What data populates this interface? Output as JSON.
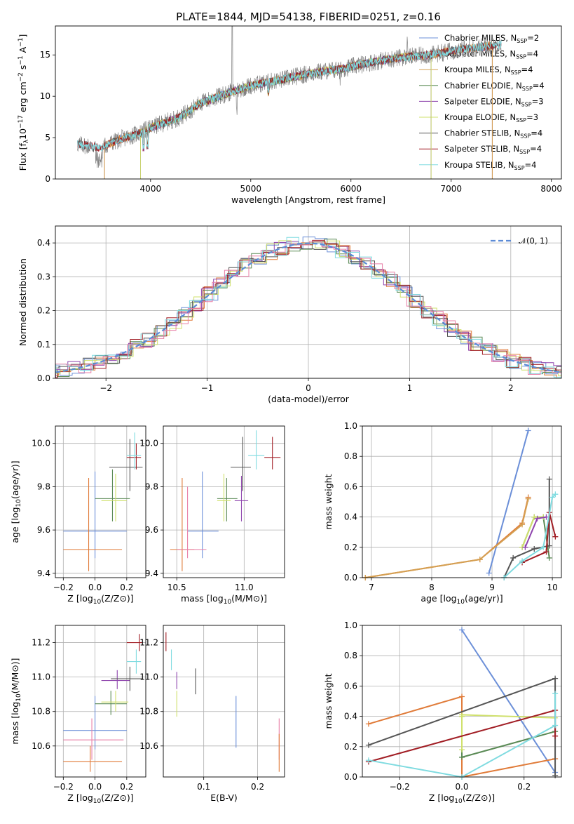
{
  "colors": {
    "cMiles": "#6b8fd8",
    "sMiles": "#e07b39",
    "kMiles": "#d4a052",
    "cElodie": "#5a8a55",
    "sElodie": "#8e44ad",
    "kElodie": "#cfe06b",
    "cStelib": "#555555",
    "sStelib": "#a11d24",
    "kStelib": "#7fdbe0",
    "extraPink": "#e87ea6",
    "gauss": "#5b8bd6"
  },
  "chart_data": [
    {
      "type": "line",
      "title": "PLATE=1844, MJD=54138, FIBERID=0251, z=0.16",
      "xlabel": "wavelength [Angstrom, rest frame]",
      "ylabel": "Flux [f_λ10^-17 erg cm^-2 s^-1 A^-1]",
      "xlim": [
        3050,
        8100
      ],
      "ylim": [
        0,
        18.5
      ],
      "xticks": [
        "4000",
        "5000",
        "6000",
        "7000",
        "8000"
      ],
      "yticks": [
        "0",
        "5",
        "10",
        "15"
      ],
      "grid": false,
      "legend": "upper-right",
      "continuum": [
        [
          3270,
          4.2
        ],
        [
          3500,
          3.8
        ],
        [
          3700,
          4.8
        ],
        [
          3900,
          5.6
        ],
        [
          4000,
          6.2
        ],
        [
          4300,
          7.5
        ],
        [
          4500,
          9.2
        ],
        [
          4800,
          10.5
        ],
        [
          5000,
          11.3
        ],
        [
          5300,
          12.0
        ],
        [
          5600,
          12.8
        ],
        [
          5900,
          13.3
        ],
        [
          6200,
          14.1
        ],
        [
          6500,
          14.7
        ],
        [
          6800,
          15.0
        ],
        [
          7000,
          15.5
        ],
        [
          7200,
          15.8
        ],
        [
          7400,
          16.1
        ],
        [
          7500,
          16.3
        ]
      ],
      "legend_entries": [
        {
          "name": "Chabrier MILES, N",
          "sub": "SSP",
          "tail": "=2"
        },
        {
          "name": "Salpeter MILES, N",
          "sub": "SSP",
          "tail": "=4"
        },
        {
          "name": "Kroupa MILES, N",
          "sub": "SSP",
          "tail": "=4"
        },
        {
          "name": "Chabrier ELODIE, N",
          "sub": "SSP",
          "tail": "=4"
        },
        {
          "name": "Salpeter ELODIE, N",
          "sub": "SSP",
          "tail": "=3"
        },
        {
          "name": "Kroupa ELODIE, N",
          "sub": "SSP",
          "tail": "=3"
        },
        {
          "name": "Chabrier STELIB, N",
          "sub": "SSP",
          "tail": "=4"
        },
        {
          "name": "Salpeter STELIB, N",
          "sub": "SSP",
          "tail": "=4"
        },
        {
          "name": "Kroupa STELIB, N",
          "sub": "SSP",
          "tail": "=4"
        }
      ]
    },
    {
      "type": "histogram",
      "xlabel": "(data-model)/error",
      "ylabel": "Normed distribution",
      "xlim": [
        -2.5,
        2.5
      ],
      "ylim": [
        0,
        0.45
      ],
      "xticks": [
        "−2",
        "−1",
        "0",
        "1",
        "2"
      ],
      "yticks": [
        "0.0",
        "0.1",
        "0.2",
        "0.3",
        "0.4"
      ],
      "grid": true,
      "legend": "upper-right",
      "gauss_label": "𝒩(0, 1)"
    },
    {
      "type": "scatter",
      "xlabel": "Z [log10(Z/Z⊙)]",
      "ylabel": "age  [log10(age/yr)]",
      "xlim": [
        -0.25,
        0.32
      ],
      "ylim": [
        9.38,
        10.08
      ],
      "xticks": [
        "−0.2",
        "0.0",
        "0.2"
      ],
      "yticks": [
        "9.4",
        "9.6",
        "9.8",
        "10.0"
      ],
      "points": [
        {
          "k": "cMiles",
          "x": 0.0,
          "y": 9.595,
          "xe": [
            -0.2,
            0.2
          ],
          "ye": [
            9.47,
            9.87
          ]
        },
        {
          "k": "sMiles",
          "x": -0.04,
          "y": 9.51,
          "xe": [
            -0.2,
            0.17
          ],
          "ye": [
            9.41,
            9.84
          ]
        },
        {
          "k": "cElodie",
          "x": 0.11,
          "y": 9.745,
          "xe": [
            0.0,
            0.22
          ],
          "ye": [
            9.64,
            9.88
          ]
        },
        {
          "k": "kElodie",
          "x": 0.13,
          "y": 9.735,
          "xe": [
            0.04,
            0.2
          ],
          "ye": [
            9.64,
            9.86
          ]
        },
        {
          "k": "cStelib",
          "x": 0.22,
          "y": 9.89,
          "xe": [
            0.09,
            0.3
          ],
          "ye": [
            9.78,
            10.02
          ]
        },
        {
          "k": "sStelib",
          "x": 0.26,
          "y": 9.935,
          "xe": [
            0.2,
            0.29
          ],
          "ye": [
            9.88,
            10.0
          ]
        },
        {
          "k": "kStelib",
          "x": 0.25,
          "y": 9.945,
          "xe": [
            0.2,
            0.29
          ],
          "ye": [
            9.88,
            10.05
          ]
        }
      ]
    },
    {
      "type": "scatter",
      "xlabel": "mass [log10(M/M⊙)]",
      "ylabel": "",
      "xlim": [
        10.4,
        11.3
      ],
      "ylim": [
        9.38,
        10.08
      ],
      "xticks": [
        "10.5",
        "11.0"
      ],
      "yticks": [
        "9.4",
        "9.6",
        "9.8",
        "10.0"
      ],
      "points": [
        {
          "k": "cMiles",
          "x": 10.69,
          "y": 9.595,
          "xe": [
            10.58,
            10.81
          ],
          "ye": [
            9.47,
            9.87
          ]
        },
        {
          "k": "sMiles",
          "x": 10.54,
          "y": 9.51,
          "xe": [
            10.45,
            10.63
          ],
          "ye": [
            9.41,
            9.84
          ]
        },
        {
          "k": "extraPink",
          "x": 10.58,
          "y": 9.51,
          "xe": [
            10.5,
            10.72
          ],
          "ye": [
            9.47,
            9.8
          ]
        },
        {
          "k": "cElodie",
          "x": 10.87,
          "y": 9.745,
          "xe": [
            10.8,
            10.95
          ],
          "ye": [
            9.64,
            9.84
          ]
        },
        {
          "k": "kElodie",
          "x": 10.85,
          "y": 9.735,
          "xe": [
            10.8,
            10.9
          ],
          "ye": [
            9.64,
            9.86
          ]
        },
        {
          "k": "sElodie",
          "x": 10.98,
          "y": 9.735,
          "xe": [
            10.93,
            11.03
          ],
          "ye": [
            9.64,
            9.85
          ]
        },
        {
          "k": "cStelib",
          "x": 10.99,
          "y": 9.89,
          "xe": [
            10.9,
            11.05
          ],
          "ye": [
            9.78,
            10.03
          ]
        },
        {
          "k": "kStelib",
          "x": 11.09,
          "y": 9.945,
          "xe": [
            11.03,
            11.15
          ],
          "ye": [
            9.88,
            10.06
          ]
        },
        {
          "k": "sStelib",
          "x": 11.21,
          "y": 9.935,
          "xe": [
            11.15,
            11.27
          ],
          "ye": [
            9.88,
            10.03
          ]
        }
      ]
    },
    {
      "type": "line",
      "xlabel": "age  [log10(age/yr)]",
      "ylabel": "mass weight",
      "xlim": [
        6.85,
        10.15
      ],
      "ylim": [
        0,
        1
      ],
      "xticks": [
        "7",
        "8",
        "9",
        "10"
      ],
      "yticks": [
        "0.0",
        "0.2",
        "0.4",
        "0.6",
        "0.8",
        "1.0"
      ],
      "series": [
        {
          "k": "cMiles",
          "pts": [
            [
              8.95,
              0.03
            ],
            [
              9.6,
              0.97
            ]
          ]
        },
        {
          "k": "sMiles",
          "pts": [
            [
              6.9,
              0.0
            ],
            [
              8.8,
              0.12
            ],
            [
              9.5,
              0.36
            ],
            [
              9.6,
              0.53
            ]
          ]
        },
        {
          "k": "kMiles",
          "pts": [
            [
              6.9,
              0.0
            ],
            [
              8.8,
              0.12
            ],
            [
              9.5,
              0.35
            ],
            [
              9.6,
              0.52
            ]
          ]
        },
        {
          "k": "cElodie",
          "pts": [
            [
              9.5,
              0.2
            ],
            [
              9.7,
              0.4
            ],
            [
              9.85,
              0.4
            ],
            [
              9.95,
              0.13
            ]
          ]
        },
        {
          "k": "kElodie",
          "pts": [
            [
              9.5,
              0.2
            ],
            [
              9.7,
              0.4
            ],
            [
              9.85,
              0.4
            ]
          ]
        },
        {
          "k": "sElodie",
          "pts": [
            [
              9.55,
              0.2
            ],
            [
              9.75,
              0.39
            ],
            [
              9.9,
              0.4
            ]
          ]
        },
        {
          "k": "cStelib",
          "pts": [
            [
              9.2,
              0.0
            ],
            [
              9.35,
              0.13
            ],
            [
              9.7,
              0.19
            ],
            [
              9.95,
              0.21
            ],
            [
              9.95,
              0.65
            ]
          ]
        },
        {
          "k": "sStelib",
          "pts": [
            [
              9.5,
              0.1
            ],
            [
              9.9,
              0.17
            ],
            [
              9.95,
              0.43
            ],
            [
              10.05,
              0.27
            ]
          ]
        },
        {
          "k": "kStelib",
          "pts": [
            [
              9.2,
              0.0
            ],
            [
              9.5,
              0.11
            ],
            [
              9.85,
              0.2
            ],
            [
              10.0,
              0.53
            ],
            [
              10.05,
              0.55
            ]
          ]
        }
      ]
    },
    {
      "type": "scatter",
      "xlabel": "Z [log10(Z/Z⊙)]",
      "ylabel": "mass [log10(M/M⊙)]",
      "xlim": [
        -0.25,
        0.32
      ],
      "ylim": [
        10.42,
        11.3
      ],
      "xticks": [
        "−0.2",
        "0.0",
        "0.2"
      ],
      "yticks": [
        "10.6",
        "10.8",
        "11.0",
        "11.2"
      ],
      "points": [
        {
          "k": "cMiles",
          "x": 0.0,
          "y": 10.69,
          "xe": [
            -0.2,
            0.2
          ],
          "ye": [
            10.58,
            10.89
          ]
        },
        {
          "k": "extraPink",
          "x": -0.02,
          "y": 10.635,
          "xe": [
            -0.2,
            0.18
          ],
          "ye": [
            10.52,
            10.76
          ]
        },
        {
          "k": "sMiles",
          "x": -0.03,
          "y": 10.51,
          "xe": [
            -0.2,
            0.17
          ],
          "ye": [
            10.45,
            10.6
          ]
        },
        {
          "k": "cElodie",
          "x": 0.1,
          "y": 10.845,
          "xe": [
            0.0,
            0.2
          ],
          "ye": [
            10.78,
            10.92
          ]
        },
        {
          "k": "kElodie",
          "x": 0.13,
          "y": 10.855,
          "xe": [
            0.04,
            0.21
          ],
          "ye": [
            10.8,
            10.92
          ]
        },
        {
          "k": "sElodie",
          "x": 0.14,
          "y": 10.98,
          "xe": [
            0.04,
            0.22
          ],
          "ye": [
            10.93,
            11.04
          ]
        },
        {
          "k": "cStelib",
          "x": 0.22,
          "y": 10.99,
          "xe": [
            0.1,
            0.3
          ],
          "ye": [
            10.92,
            11.06
          ]
        },
        {
          "k": "kStelib",
          "x": 0.26,
          "y": 11.09,
          "xe": [
            0.2,
            0.29
          ],
          "ye": [
            11.02,
            11.16
          ]
        },
        {
          "k": "sStelib",
          "x": 0.28,
          "y": 11.2,
          "xe": [
            0.2,
            0.3
          ],
          "ye": [
            11.15,
            11.25
          ]
        }
      ]
    },
    {
      "type": "scatter",
      "xlabel": "E(B-V)",
      "ylabel": "",
      "xlim": [
        0.025,
        0.25
      ],
      "ylim": [
        10.42,
        11.3
      ],
      "xticks": [
        "0.1",
        "0.2"
      ],
      "yticks": [
        "10.6",
        "10.8",
        "11.0",
        "11.2"
      ],
      "points": [
        {
          "k": "sStelib",
          "x": 0.03,
          "y": 11.2,
          "ye": [
            11.15,
            11.26
          ]
        },
        {
          "k": "kStelib",
          "x": 0.04,
          "y": 11.1,
          "ye": [
            11.04,
            11.16
          ]
        },
        {
          "k": "sElodie",
          "x": 0.05,
          "y": 10.98,
          "ye": [
            10.93,
            11.03
          ]
        },
        {
          "k": "kElodie",
          "x": 0.05,
          "y": 10.85,
          "ye": [
            10.77,
            10.92
          ]
        },
        {
          "k": "cStelib",
          "x": 0.085,
          "y": 10.98,
          "ye": [
            10.9,
            11.05
          ]
        },
        {
          "k": "cMiles",
          "x": 0.16,
          "y": 10.7,
          "ye": [
            10.59,
            10.89
          ]
        },
        {
          "k": "extraPink",
          "x": 0.24,
          "y": 10.64,
          "ye": [
            10.52,
            10.76
          ]
        },
        {
          "k": "sMiles",
          "x": 0.24,
          "y": 10.52,
          "ye": [
            10.45,
            10.67
          ]
        }
      ]
    },
    {
      "type": "line",
      "xlabel": "Z [log10(Z/Z⊙)]",
      "ylabel": "mass weight",
      "xlim": [
        -0.32,
        0.32
      ],
      "ylim": [
        0,
        1
      ],
      "xticks": [
        "−0.2",
        "0.0",
        "0.2"
      ],
      "yticks": [
        "0.0",
        "0.2",
        "0.4",
        "0.6",
        "0.8",
        "1.0"
      ],
      "series": [
        {
          "k": "cMiles",
          "pts": [
            [
              0.0,
              0.97
            ],
            [
              0.3,
              0.03
            ]
          ]
        },
        {
          "k": "sMiles",
          "pts": [
            [
              -0.3,
              0.35
            ],
            [
              0.0,
              0.53
            ],
            [
              0.0,
              0.0
            ],
            [
              0.3,
              0.12
            ]
          ]
        },
        {
          "k": "cElodie",
          "pts": [
            [
              0.0,
              0.4
            ],
            [
              0.0,
              0.13
            ],
            [
              0.3,
              0.3
            ]
          ]
        },
        {
          "k": "kElodie",
          "pts": [
            [
              0.0,
              0.4
            ],
            [
              0.0,
              0.18
            ],
            [
              0.0,
              0.41
            ],
            [
              0.3,
              0.39
            ]
          ]
        },
        {
          "k": "cStelib",
          "pts": [
            [
              -0.3,
              0.21
            ],
            [
              0.3,
              0.65
            ],
            [
              0.3,
              0.01
            ]
          ]
        },
        {
          "k": "sStelib",
          "pts": [
            [
              -0.3,
              0.1
            ],
            [
              0.3,
              0.44
            ],
            [
              0.3,
              0.27
            ]
          ]
        },
        {
          "k": "kStelib",
          "pts": [
            [
              -0.3,
              0.11
            ],
            [
              0.0,
              0.0
            ],
            [
              0.3,
              0.34
            ],
            [
              0.3,
              0.55
            ]
          ]
        }
      ]
    }
  ]
}
